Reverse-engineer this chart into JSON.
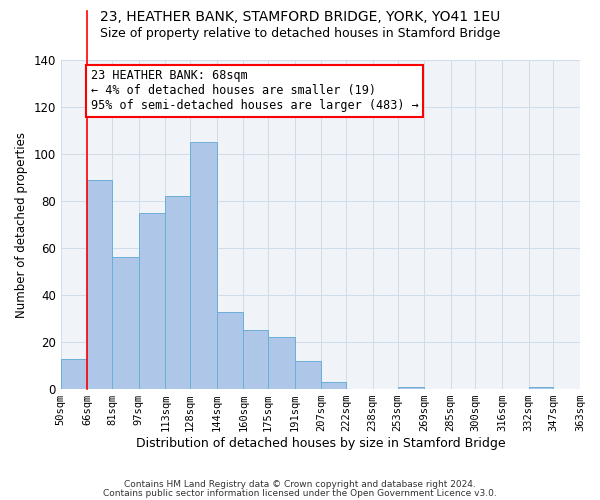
{
  "title": "23, HEATHER BANK, STAMFORD BRIDGE, YORK, YO41 1EU",
  "subtitle": "Size of property relative to detached houses in Stamford Bridge",
  "xlabel": "Distribution of detached houses by size in Stamford Bridge",
  "ylabel": "Number of detached properties",
  "bin_edges": [
    50,
    66,
    81,
    97,
    113,
    128,
    144,
    160,
    175,
    191,
    207,
    222,
    238,
    253,
    269,
    285,
    300,
    316,
    332,
    347,
    363
  ],
  "bar_heights": [
    13,
    89,
    56,
    75,
    82,
    105,
    33,
    25,
    22,
    12,
    3,
    0,
    0,
    1,
    0,
    0,
    0,
    0,
    1,
    0
  ],
  "bar_color": "#aec6e8",
  "bar_edge_color": "#6aaed6",
  "red_line_x": 66,
  "ylim": [
    0,
    140
  ],
  "yticks": [
    0,
    20,
    40,
    60,
    80,
    100,
    120,
    140
  ],
  "annotation_title": "23 HEATHER BANK: 68sqm",
  "annotation_line1": "← 4% of detached houses are smaller (19)",
  "annotation_line2": "95% of semi-detached houses are larger (483) →",
  "footnote1": "Contains HM Land Registry data © Crown copyright and database right 2024.",
  "footnote2": "Contains public sector information licensed under the Open Government Licence v3.0.",
  "tick_labels": [
    "50sqm",
    "66sqm",
    "81sqm",
    "97sqm",
    "113sqm",
    "128sqm",
    "144sqm",
    "160sqm",
    "175sqm",
    "191sqm",
    "207sqm",
    "222sqm",
    "238sqm",
    "253sqm",
    "269sqm",
    "285sqm",
    "300sqm",
    "316sqm",
    "332sqm",
    "347sqm",
    "363sqm"
  ],
  "title_fontsize": 10,
  "subtitle_fontsize": 9,
  "ylabel_fontsize": 8.5,
  "xlabel_fontsize": 9,
  "ytick_fontsize": 8.5,
  "xtick_fontsize": 7.5,
  "annotation_fontsize": 8.5,
  "footnote_fontsize": 6.5,
  "grid_color": "#d0dde8",
  "background_color": "#f0f4f8"
}
